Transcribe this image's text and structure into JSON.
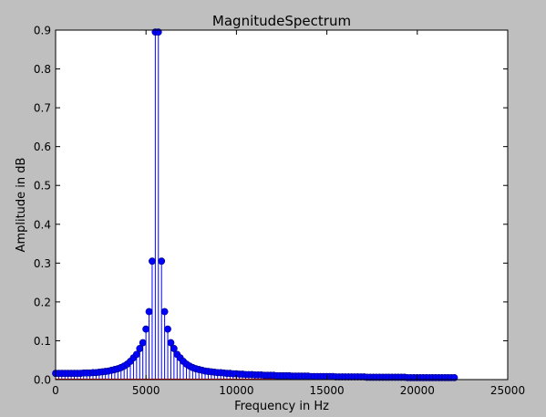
{
  "chart_data": {
    "type": "stem",
    "title": "MagnitudeSpectrum",
    "xlabel": "Frequency in Hz",
    "ylabel": "Amplitude in dB",
    "xlim": [
      0,
      25000
    ],
    "ylim": [
      0,
      0.9
    ],
    "xticks": [
      0,
      5000,
      10000,
      15000,
      20000,
      25000
    ],
    "yticks": [
      0.0,
      0.1,
      0.2,
      0.3,
      0.4,
      0.5,
      0.6,
      0.7,
      0.8,
      0.9
    ],
    "series_color": "#0000ff",
    "marker": "circle",
    "grid": false,
    "series": [
      {
        "x": [
          0,
          172,
          344,
          516,
          689,
          861,
          1033,
          1205,
          1378,
          1550,
          1722,
          1894,
          2067,
          2239,
          2411,
          2583,
          2756,
          2928,
          3100,
          3272,
          3445,
          3617,
          3789,
          3962,
          4134,
          4306,
          4478,
          4651,
          4823,
          4995,
          5168,
          5340,
          5512,
          5684,
          5857,
          6029,
          6201,
          6373,
          6546,
          6718,
          6890,
          7062,
          7235,
          7407,
          7579,
          7751,
          7924,
          8096,
          8268,
          8440,
          8613,
          8785,
          8957,
          9130,
          9302,
          9474,
          9646,
          9819,
          9991,
          10163,
          10335,
          10508,
          10680,
          10852,
          11024,
          11197,
          11369,
          11541,
          11713,
          11886,
          12058,
          12230,
          12402,
          12575,
          12747,
          12919,
          13091,
          13264,
          13436,
          13608,
          13780,
          13953,
          14125,
          14297,
          14469,
          14642,
          14814,
          14986,
          15158,
          15331,
          15503,
          15675,
          15847,
          16020,
          16192,
          16364,
          16536,
          16709,
          16881,
          17053,
          17226,
          17398,
          17570,
          17742,
          17915,
          18087,
          18259,
          18431,
          18604,
          18776,
          18948,
          19120,
          19293,
          19465,
          19637,
          19809,
          19982,
          20154,
          20326,
          20498,
          20671,
          20843,
          21015,
          21187,
          21360,
          21532,
          21704,
          21876,
          22049
        ],
        "y": [
          0.016,
          0.016,
          0.016,
          0.016,
          0.016,
          0.016,
          0.016,
          0.016,
          0.016,
          0.017,
          0.017,
          0.017,
          0.018,
          0.018,
          0.019,
          0.02,
          0.021,
          0.022,
          0.024,
          0.026,
          0.028,
          0.031,
          0.035,
          0.04,
          0.047,
          0.056,
          0.065,
          0.08,
          0.095,
          0.13,
          0.175,
          0.305,
          0.895,
          0.895,
          0.305,
          0.175,
          0.13,
          0.095,
          0.08,
          0.065,
          0.056,
          0.047,
          0.04,
          0.035,
          0.031,
          0.028,
          0.026,
          0.024,
          0.022,
          0.021,
          0.02,
          0.019,
          0.018,
          0.018,
          0.017,
          0.016,
          0.016,
          0.015,
          0.015,
          0.014,
          0.014,
          0.013,
          0.013,
          0.013,
          0.012,
          0.012,
          0.012,
          0.011,
          0.011,
          0.011,
          0.011,
          0.01,
          0.01,
          0.01,
          0.01,
          0.01,
          0.009,
          0.009,
          0.009,
          0.009,
          0.009,
          0.009,
          0.008,
          0.008,
          0.008,
          0.008,
          0.008,
          0.008,
          0.008,
          0.008,
          0.007,
          0.007,
          0.007,
          0.007,
          0.007,
          0.007,
          0.007,
          0.007,
          0.007,
          0.007,
          0.006,
          0.006,
          0.006,
          0.006,
          0.006,
          0.006,
          0.006,
          0.006,
          0.006,
          0.006,
          0.006,
          0.006,
          0.006,
          0.005,
          0.005,
          0.005,
          0.005,
          0.005,
          0.005,
          0.005,
          0.005,
          0.005,
          0.005,
          0.005,
          0.005,
          0.005,
          0.005,
          0.005,
          0.005
        ]
      }
    ]
  }
}
